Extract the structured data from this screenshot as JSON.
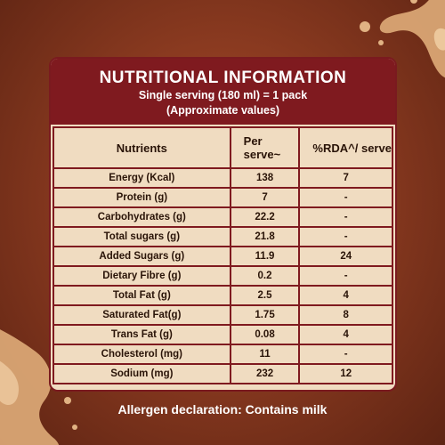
{
  "header": {
    "title": "NUTRITIONAL INFORMATION",
    "serving": "Single serving (180 ml) = 1 pack",
    "note": "(Approximate values)"
  },
  "table": {
    "columns": [
      "Nutrients",
      "Per serve~",
      "%RDA^/ serve"
    ],
    "rows": [
      {
        "nutrient": "Energy (Kcal)",
        "per_serve": "138",
        "rda": "7"
      },
      {
        "nutrient": "Protein (g)",
        "per_serve": "7",
        "rda": "-"
      },
      {
        "nutrient": "Carbohydrates (g)",
        "per_serve": "22.2",
        "rda": "-"
      },
      {
        "nutrient": "Total sugars (g)",
        "per_serve": "21.8",
        "rda": "-"
      },
      {
        "nutrient": "Added Sugars (g)",
        "per_serve": "11.9",
        "rda": "24"
      },
      {
        "nutrient": "Dietary Fibre (g)",
        "per_serve": "0.2",
        "rda": "-"
      },
      {
        "nutrient": "Total Fat (g)",
        "per_serve": "2.5",
        "rda": "4"
      },
      {
        "nutrient": "Saturated Fat(g)",
        "per_serve": "1.75",
        "rda": "8"
      },
      {
        "nutrient": "Trans Fat (g)",
        "per_serve": "0.08",
        "rda": "4"
      },
      {
        "nutrient": "Cholesterol  (mg)",
        "per_serve": "11",
        "rda": "-"
      },
      {
        "nutrient": "Sodium (mg)",
        "per_serve": "232",
        "rda": "12"
      }
    ]
  },
  "footer": {
    "allergen": "Allergen declaration: Contains milk"
  },
  "colors": {
    "background": "#8a3a20",
    "header": "#7f1a1f",
    "table_fill": "#f0dcc1",
    "splash": "#d9a574"
  }
}
